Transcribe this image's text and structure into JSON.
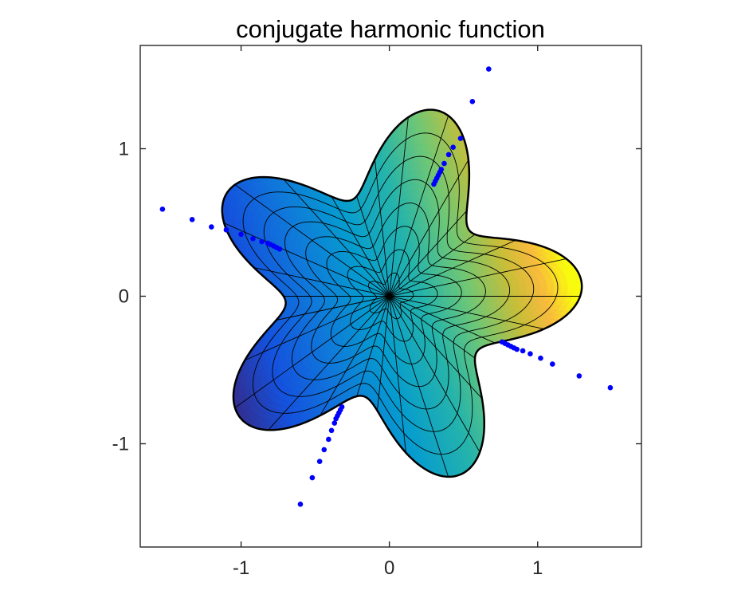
{
  "chart_data": {
    "type": "surface-contour",
    "title": "conjugate harmonic function",
    "xlabel": "",
    "ylabel": "",
    "xlim": [
      -1.68,
      1.7
    ],
    "ylim": [
      -1.7,
      1.7
    ],
    "xticks": [
      -1,
      0,
      1
    ],
    "xtick_labels": [
      "-1",
      "0",
      "1"
    ],
    "yticks": [
      -1,
      0,
      1
    ],
    "ytick_labels": [
      "-1",
      "0",
      "1"
    ],
    "grid": false,
    "legend": "none",
    "colormap": "parula",
    "domain_boundary": "r(t) = 1 + 0.3*cos(5t - 0.3), five-lobed star",
    "field": "u(x,y) = x + 0.3*y (increasing toward the right lobe)",
    "field_range": [
      -1.3,
      1.25
    ],
    "mesh": {
      "radial_levels": 8,
      "angular_lines": 30
    },
    "poles": [
      {
        "name": "pole-ray-upper-right",
        "points": [
          [
            0.3,
            0.76
          ],
          [
            0.31,
            0.78
          ],
          [
            0.32,
            0.8
          ],
          [
            0.33,
            0.82
          ],
          [
            0.34,
            0.84
          ],
          [
            0.35,
            0.86
          ],
          [
            0.37,
            0.9
          ],
          [
            0.4,
            0.96
          ],
          [
            0.43,
            1.01
          ],
          [
            0.48,
            1.07
          ],
          [
            0.56,
            1.32
          ],
          [
            0.67,
            1.54
          ]
        ]
      },
      {
        "name": "pole-ray-left",
        "points": [
          [
            -0.74,
            0.32
          ],
          [
            -0.76,
            0.33
          ],
          [
            -0.78,
            0.34
          ],
          [
            -0.8,
            0.35
          ],
          [
            -0.82,
            0.36
          ],
          [
            -0.86,
            0.37
          ],
          [
            -0.92,
            0.39
          ],
          [
            -1.0,
            0.42
          ],
          [
            -1.1,
            0.45
          ],
          [
            -1.2,
            0.47
          ],
          [
            -1.33,
            0.52
          ],
          [
            -1.53,
            0.59
          ]
        ]
      },
      {
        "name": "pole-ray-lower-left",
        "points": [
          [
            -0.32,
            -0.75
          ],
          [
            -0.33,
            -0.77
          ],
          [
            -0.34,
            -0.79
          ],
          [
            -0.35,
            -0.81
          ],
          [
            -0.36,
            -0.83
          ],
          [
            -0.37,
            -0.86
          ],
          [
            -0.39,
            -0.91
          ],
          [
            -0.41,
            -0.97
          ],
          [
            -0.44,
            -1.04
          ],
          [
            -0.47,
            -1.12
          ],
          [
            -0.52,
            -1.23
          ],
          [
            -0.6,
            -1.41
          ]
        ]
      },
      {
        "name": "pole-ray-lower-right",
        "points": [
          [
            0.76,
            -0.31
          ],
          [
            0.78,
            -0.32
          ],
          [
            0.8,
            -0.33
          ],
          [
            0.82,
            -0.34
          ],
          [
            0.84,
            -0.35
          ],
          [
            0.86,
            -0.36
          ],
          [
            0.9,
            -0.37
          ],
          [
            0.95,
            -0.39
          ],
          [
            1.02,
            -0.42
          ],
          [
            1.1,
            -0.46
          ],
          [
            1.28,
            -0.54
          ],
          [
            1.49,
            -0.62
          ]
        ]
      }
    ],
    "colors": {
      "axes": "#262626",
      "mesh": "#000000",
      "poles": "#0000ff",
      "boundary": "#000000"
    }
  }
}
